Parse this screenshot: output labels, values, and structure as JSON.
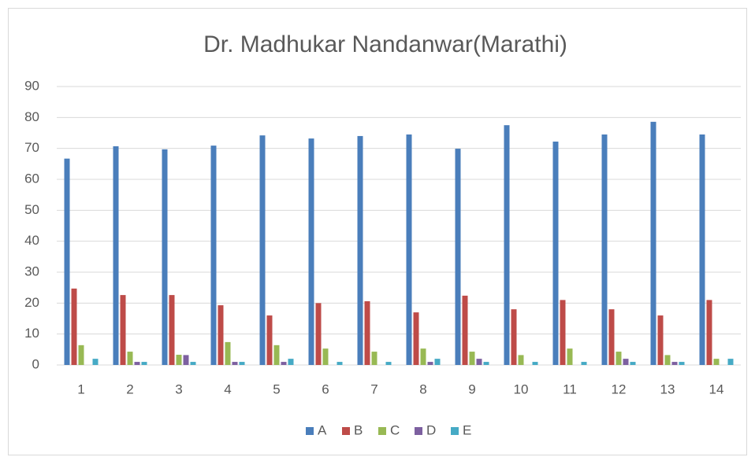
{
  "chart_data": {
    "type": "bar",
    "title": "Dr. Madhukar Nandanwar(Marathi)",
    "categories": [
      "1",
      "2",
      "3",
      "4",
      "5",
      "6",
      "7",
      "8",
      "9",
      "10",
      "11",
      "12",
      "13",
      "14"
    ],
    "series": [
      {
        "name": "A",
        "color": "#4a7ebb",
        "values": [
          66.7,
          70.7,
          69.7,
          70.9,
          74.2,
          73.2,
          74,
          74.5,
          69.9,
          77.5,
          72.2,
          74.5,
          78.6,
          74.5
        ]
      },
      {
        "name": "B",
        "color": "#be4b48",
        "values": [
          24.7,
          22.6,
          22.6,
          19.3,
          16,
          20,
          20.6,
          17,
          22.4,
          18,
          21,
          18,
          16,
          21
        ]
      },
      {
        "name": "C",
        "color": "#98b954",
        "values": [
          6.4,
          4.3,
          3.3,
          7.4,
          6.4,
          5.3,
          4.3,
          5.3,
          4.3,
          3.2,
          5.3,
          4.3,
          3.2,
          2
        ]
      },
      {
        "name": "D",
        "color": "#7d60a0",
        "values": [
          0,
          1,
          3.2,
          1,
          1,
          0,
          0,
          1,
          2,
          0,
          0,
          2,
          1,
          0
        ]
      },
      {
        "name": "E",
        "color": "#46aac5",
        "values": [
          2,
          1,
          1,
          1,
          2,
          1,
          1,
          2,
          1,
          1,
          1,
          1,
          1,
          2
        ]
      }
    ],
    "ylim": [
      0,
      90
    ],
    "yticks": [
      0,
      10,
      20,
      30,
      40,
      50,
      60,
      70,
      80,
      90
    ],
    "grid": true,
    "legend": "bottom"
  }
}
